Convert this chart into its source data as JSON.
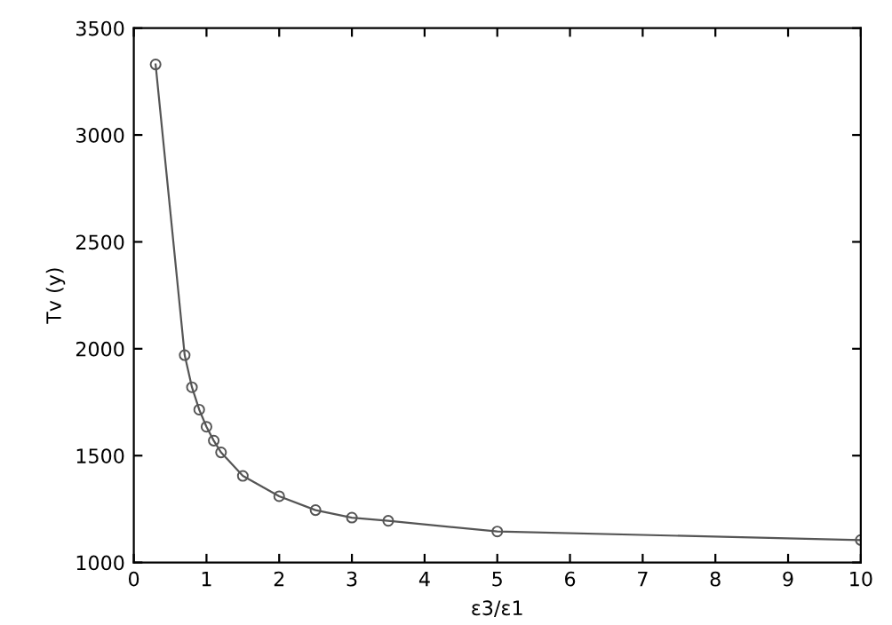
{
  "chart_data": {
    "type": "line",
    "xlabel": "ε3/ε1",
    "ylabel": "Tv (y)",
    "x": [
      0.3,
      0.7,
      0.8,
      0.9,
      1.0,
      1.1,
      1.2,
      1.5,
      2.0,
      2.5,
      3.0,
      3.5,
      5.0,
      10.0
    ],
    "series": [
      {
        "color": "#555555",
        "values": [
          3330,
          1970,
          1820,
          1715,
          1635,
          1570,
          1515,
          1405,
          1310,
          1245,
          1210,
          1195,
          1145,
          1105
        ]
      }
    ],
    "xlim": [
      0,
      10
    ],
    "xticks": [
      0,
      1,
      2,
      3,
      4,
      5,
      6,
      7,
      8,
      9,
      10
    ],
    "ylim": [
      1000,
      3500
    ],
    "yticks": [
      1000,
      1500,
      2000,
      2500,
      3000,
      3500
    ],
    "marker": "circle",
    "line_style": "solid",
    "grid": false,
    "legend": false
  }
}
